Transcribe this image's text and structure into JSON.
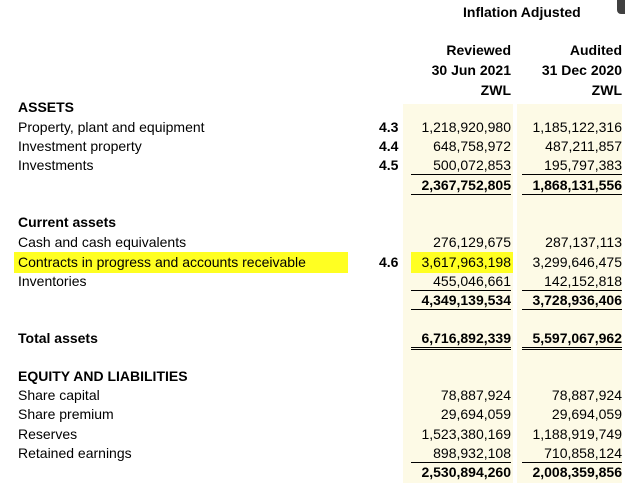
{
  "header": {
    "title": "Inflation Adjusted",
    "col1": {
      "line1": "Reviewed",
      "line2": "30 Jun 2021",
      "line3": "ZWL"
    },
    "col2": {
      "line1": "Audited",
      "line2": "31 Dec 2020",
      "line3": "ZWL"
    }
  },
  "sections": {
    "assets": "ASSETS",
    "current_assets": "Current assets",
    "total_assets": "Total assets",
    "equity": "EQUITY AND LIABILITIES"
  },
  "rows": {
    "ppe": {
      "label": "Property, plant and equipment",
      "note": "4.3",
      "v1": "1,218,920,980",
      "v2": "1,185,122,316"
    },
    "ip": {
      "label": "Investment property",
      "note": "4.4",
      "v1": "648,758,972",
      "v2": "487,211,857"
    },
    "inv": {
      "label": "Investments",
      "note": "4.5",
      "v1": "500,072,853",
      "v2": "195,797,383"
    },
    "nca_total": {
      "v1": "2,367,752,805",
      "v2": "1,868,131,556"
    },
    "cash": {
      "label": "Cash and cash equivalents",
      "v1": "276,129,675",
      "v2": "287,137,113"
    },
    "contracts": {
      "label": "Contracts in progress and accounts receivable",
      "note": "4.6",
      "v1": "3,617,963,198",
      "v2": "3,299,646,475"
    },
    "inventories": {
      "label": "Inventories",
      "v1": "455,046,661",
      "v2": "142,152,818"
    },
    "ca_total": {
      "v1": "4,349,139,534",
      "v2": "3,728,936,406"
    },
    "total_assets": {
      "v1": "6,716,892,339",
      "v2": "5,597,067,962"
    },
    "share_capital": {
      "label": "Share capital",
      "v1": "78,887,924",
      "v2": "78,887,924"
    },
    "share_premium": {
      "label": "Share premium",
      "v1": "29,694,059",
      "v2": "29,694,059"
    },
    "reserves": {
      "label": "Reserves",
      "v1": "1,523,380,169",
      "v2": "1,188,919,749"
    },
    "retained": {
      "label": "Retained earnings",
      "v1": "898,932,108",
      "v2": "710,858,124"
    },
    "eq_total": {
      "v1": "2,530,894,260",
      "v2": "2,008,359,856"
    }
  },
  "colors": {
    "highlight": "#ffff22",
    "column_shade": "#fdfae6"
  }
}
